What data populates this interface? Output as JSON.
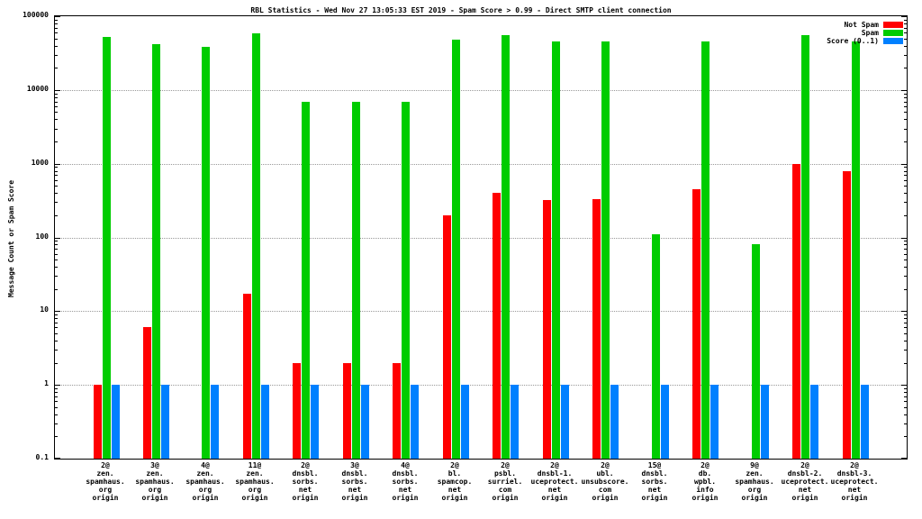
{
  "chart_data": {
    "type": "bar",
    "title": "RBL Statistics - Wed Nov 27 13:05:33 EST 2019 - Spam Score > 0.99 - Direct SMTP client connection",
    "ylabel": "Message Count or Spam Score",
    "yscale": "log",
    "ylim": [
      0.1,
      100000
    ],
    "yticks": [
      0.1,
      1,
      10,
      100,
      1000,
      10000,
      100000
    ],
    "ytick_labels": [
      "0.1",
      "1",
      "10",
      "100",
      "1000",
      "10000",
      "100000"
    ],
    "grid": "horizontal-dotted",
    "legend_position": "top-right",
    "categories": [
      [
        "2@",
        "zen.",
        "spamhaus.",
        "org",
        "origin"
      ],
      [
        "3@",
        "zen.",
        "spamhaus.",
        "org",
        "origin"
      ],
      [
        "4@",
        "zen.",
        "spamhaus.",
        "org",
        "origin"
      ],
      [
        "11@",
        "zen.",
        "spamhaus.",
        "org",
        "origin"
      ],
      [
        "2@",
        "dnsbl.",
        "sorbs.",
        "net",
        "origin"
      ],
      [
        "3@",
        "dnsbl.",
        "sorbs.",
        "net",
        "origin"
      ],
      [
        "4@",
        "dnsbl.",
        "sorbs.",
        "net",
        "origin"
      ],
      [
        "2@",
        "bl.",
        "spamcop.",
        "net",
        "origin"
      ],
      [
        "2@",
        "psbl.",
        "surriel.",
        "com",
        "origin"
      ],
      [
        "2@",
        "dnsbl-1.",
        "uceprotect.",
        "net",
        "origin"
      ],
      [
        "2@",
        "ubl.",
        "unsubscore.",
        "com",
        "origin"
      ],
      [
        "15@",
        "dnsbl.",
        "sorbs.",
        "net",
        "origin"
      ],
      [
        "2@",
        "db.",
        "wpbl.",
        "info",
        "origin"
      ],
      [
        "9@",
        "zen.",
        "spamhaus.",
        "org",
        "origin"
      ],
      [
        "2@",
        "dnsbl-2.",
        "uceprotect.",
        "net",
        "origin"
      ],
      [
        "2@",
        "dnsbl-3.",
        "uceprotect.",
        "net",
        "origin"
      ]
    ],
    "series": [
      {
        "name": "Not Spam",
        "color": "#ff0000",
        "values": [
          1,
          6,
          0,
          17,
          2,
          2,
          2,
          200,
          400,
          320,
          330,
          0,
          450,
          0,
          1000,
          800
        ]
      },
      {
        "name": "Spam",
        "color": "#00cc00",
        "values": [
          52000,
          42000,
          38000,
          58000,
          7000,
          7000,
          7000,
          48000,
          55000,
          45000,
          46000,
          110,
          45000,
          80,
          55000,
          45000
        ]
      },
      {
        "name": "Score (0..1)",
        "color": "#0080ff",
        "values": [
          1,
          1,
          1,
          1,
          1,
          1,
          1,
          1,
          1,
          1,
          1,
          1,
          1,
          1,
          1,
          1
        ]
      }
    ]
  }
}
